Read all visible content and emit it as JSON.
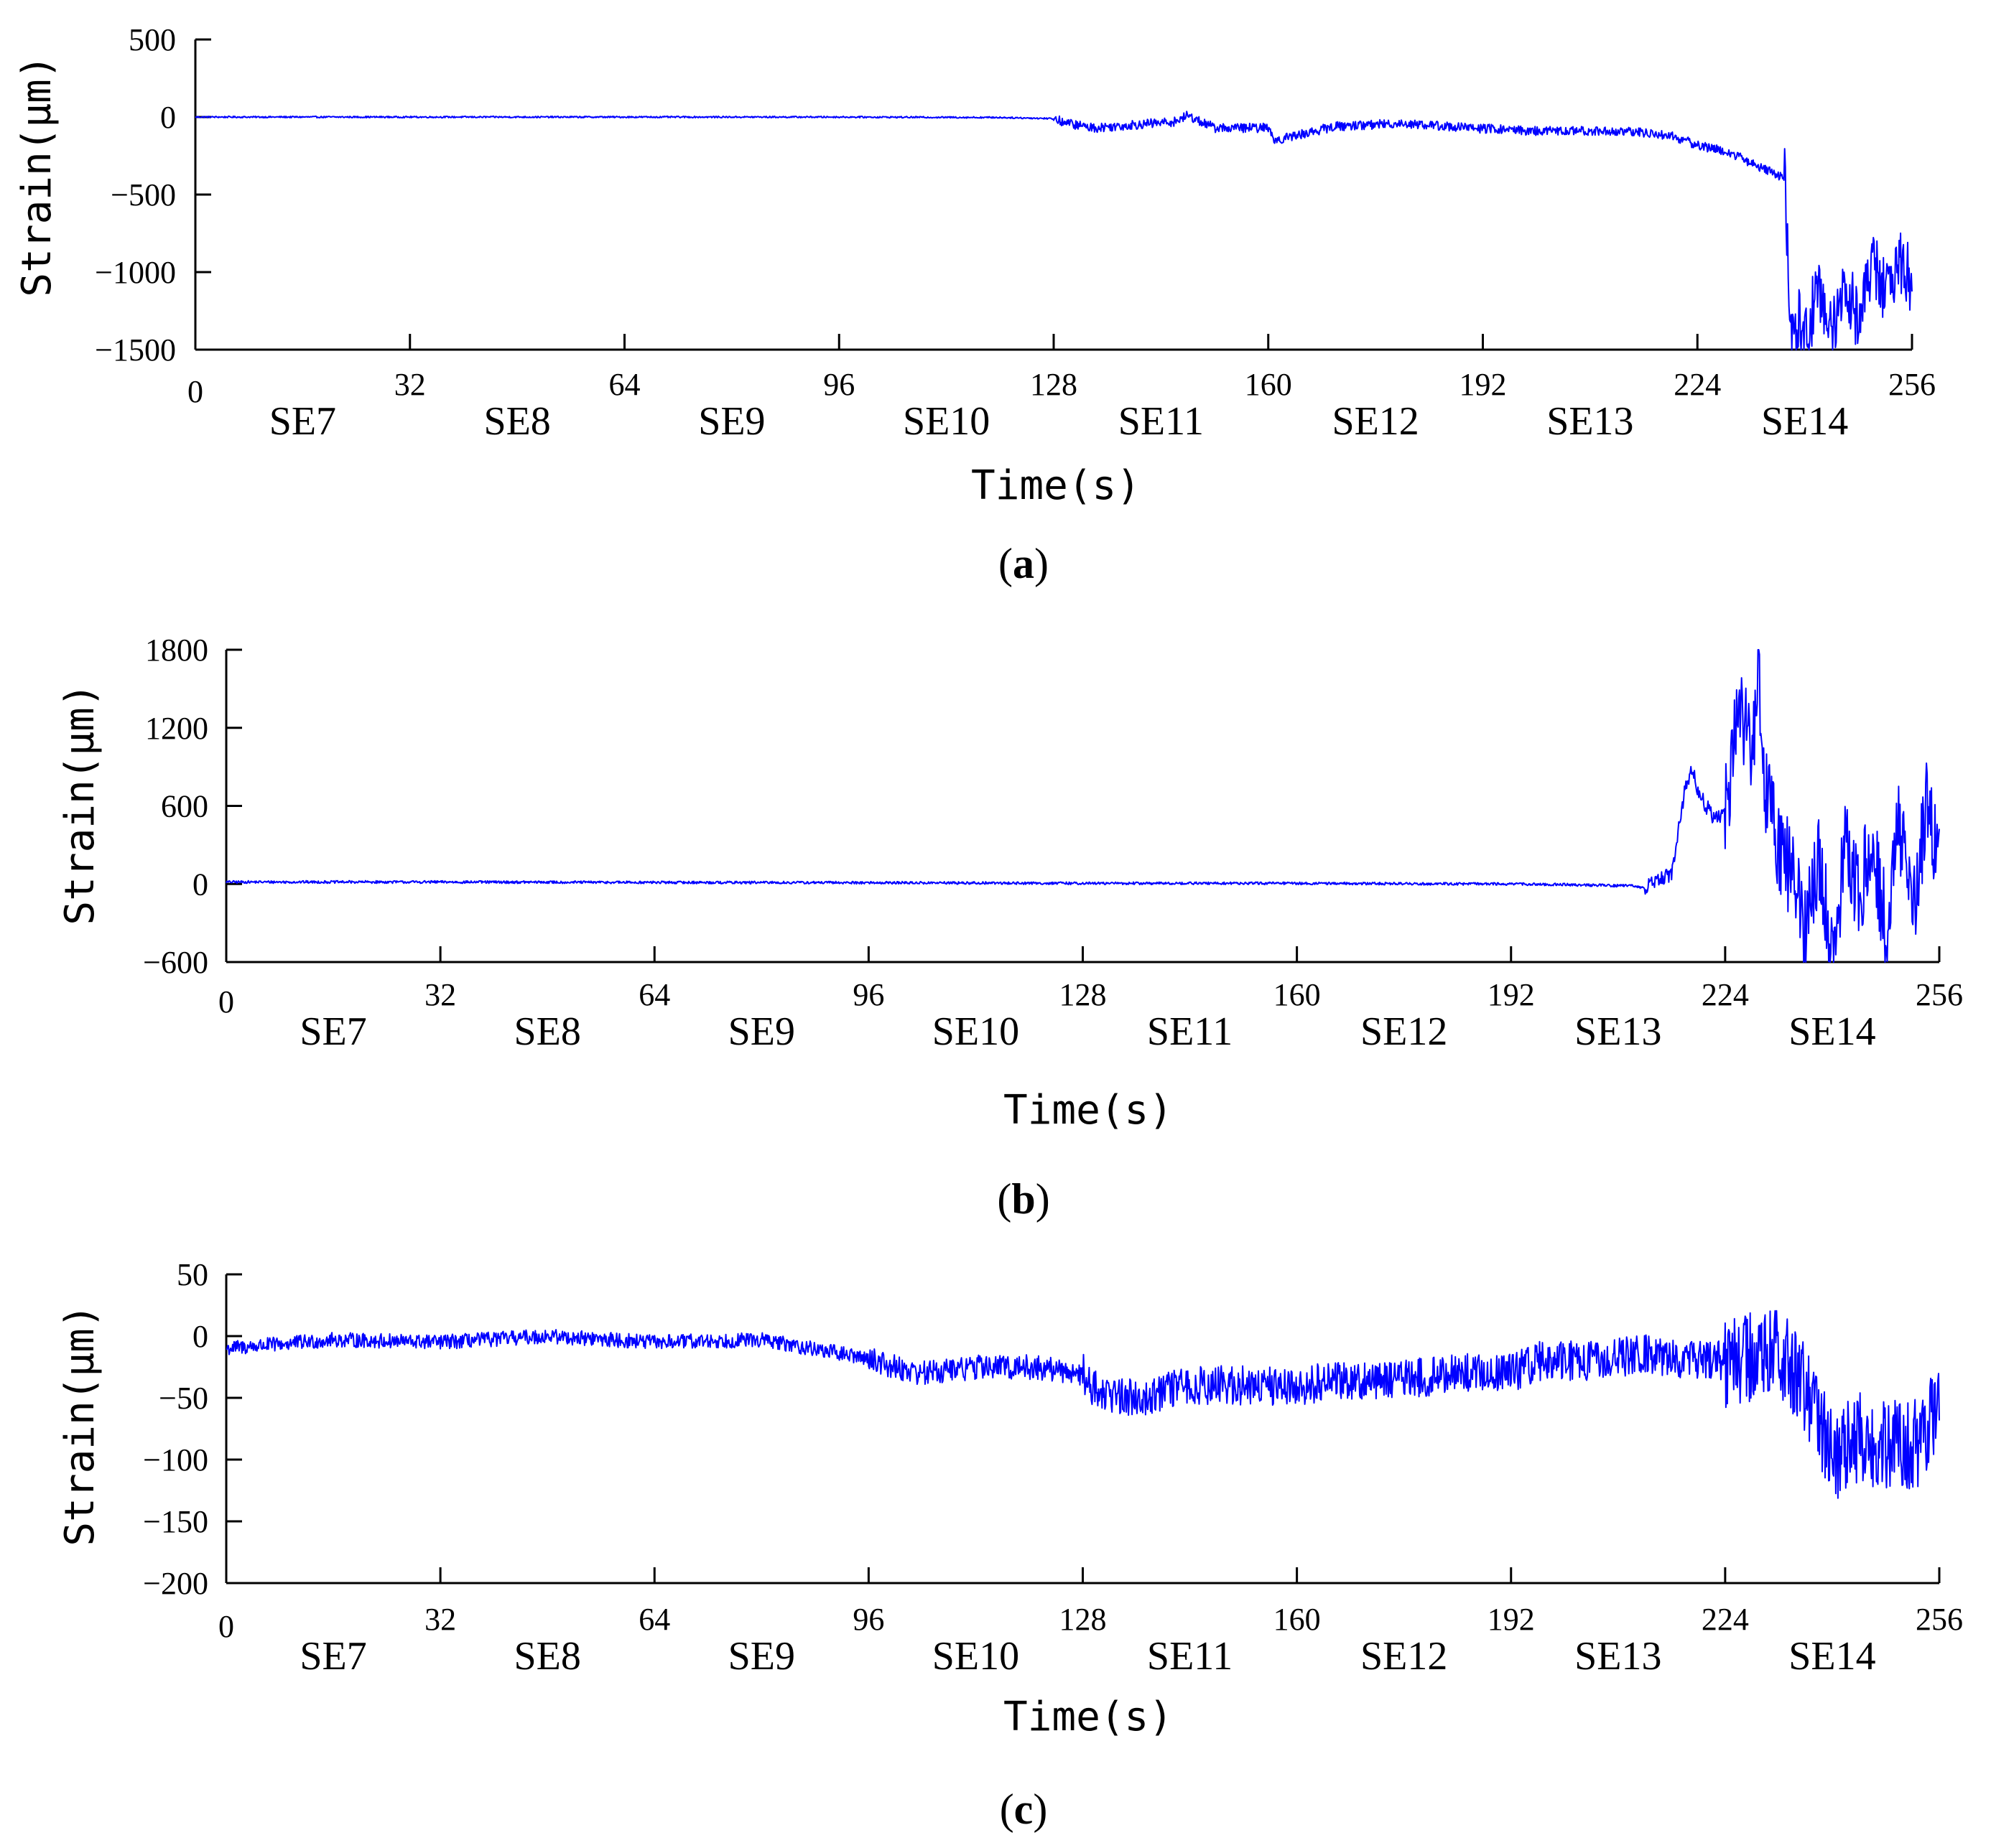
{
  "panels": [
    {
      "label": "a",
      "ylabel": "Strain(μm)",
      "xlabel": "Time(s)",
      "segments": [
        "SE7",
        "SE8",
        "SE9",
        "SE10",
        "SE11",
        "SE12",
        "SE13",
        "SE14"
      ],
      "xticks": [
        "0",
        "32",
        "64",
        "96",
        "128",
        "160",
        "192",
        "224",
        "256"
      ],
      "yticks": [
        "500",
        "0",
        "−500",
        "−1000",
        "−1500"
      ]
    },
    {
      "label": "b",
      "ylabel": "Strain(μm)",
      "xlabel": "Time(s)",
      "segments": [
        "SE7",
        "SE8",
        "SE9",
        "SE10",
        "SE11",
        "SE12",
        "SE13",
        "SE14"
      ],
      "xticks": [
        "0",
        "32",
        "64",
        "96",
        "128",
        "160",
        "192",
        "224",
        "256"
      ],
      "yticks": [
        "1800",
        "1200",
        "600",
        "0",
        "−600"
      ]
    },
    {
      "label": "c",
      "ylabel": "Strain(μm)",
      "xlabel": "Time(s)",
      "segments": [
        "SE7",
        "SE8",
        "SE9",
        "SE10",
        "SE11",
        "SE12",
        "SE13",
        "SE14"
      ],
      "xticks": [
        "0",
        "32",
        "64",
        "96",
        "128",
        "160",
        "192",
        "224",
        "256"
      ],
      "yticks": [
        "50",
        "0",
        "−50",
        "−100",
        "−150",
        "−200"
      ]
    }
  ],
  "chart_data": [
    {
      "type": "line",
      "panel": "a",
      "color": "#0000ff",
      "xlim": [
        0,
        256
      ],
      "ylim": [
        -1500,
        500
      ],
      "series": [
        {
          "x": [
            0,
            32,
            64,
            96,
            120,
            128,
            130,
            134,
            140,
            146,
            148,
            152,
            160,
            161,
            170,
            180,
            190,
            200,
            210,
            216,
            220,
            224,
            228,
            230,
            232,
            234,
            237,
            238,
            239,
            240,
            242,
            244,
            246,
            248,
            250,
            252,
            254,
            256
          ],
          "y": [
            0,
            0,
            0,
            0,
            -3,
            -10,
            -40,
            -70,
            -50,
            -30,
            10,
            -70,
            -70,
            -150,
            -60,
            -40,
            -70,
            -90,
            -90,
            -100,
            -120,
            -180,
            -220,
            -250,
            -300,
            -330,
            -400,
            -1500,
            -1300,
            -1450,
            -1100,
            -1400,
            -1050,
            -1300,
            -950,
            -1100,
            -950,
            -1050
          ]
        }
      ],
      "xticks": [
        0,
        32,
        64,
        96,
        128,
        160,
        192,
        224,
        256
      ],
      "yticks": [
        500,
        0,
        -500,
        -1000,
        -1500
      ],
      "xlabel": "Time(s)",
      "ylabel": "Strain(μm)"
    },
    {
      "type": "line",
      "panel": "b",
      "color": "#0000ff",
      "xlim": [
        0,
        256
      ],
      "ylim": [
        -600,
        1800
      ],
      "series": [
        {
          "x": [
            0,
            32,
            64,
            96,
            128,
            160,
            192,
            200,
            210,
            212,
            214,
            216,
            217,
            218,
            219,
            220,
            222,
            224,
            226,
            228,
            229,
            230,
            232,
            234,
            236,
            238,
            240,
            242,
            244,
            246,
            248,
            250,
            252,
            254,
            256
          ],
          "y": [
            15,
            15,
            12,
            10,
            5,
            5,
            0,
            -5,
            -15,
            -30,
            30,
            80,
            400,
            720,
            900,
            700,
            530,
            530,
            1400,
            1050,
            1700,
            700,
            300,
            50,
            -350,
            200,
            -500,
            250,
            -100,
            350,
            -300,
            400,
            -200,
            600,
            150
          ]
        }
      ],
      "xticks": [
        0,
        32,
        64,
        96,
        128,
        160,
        192,
        224,
        256
      ],
      "yticks": [
        1800,
        1200,
        600,
        0,
        -600
      ],
      "xlabel": "Time(s)",
      "ylabel": "Strain(μm)"
    },
    {
      "type": "line",
      "panel": "c",
      "color": "#0000ff",
      "xlim": [
        0,
        256
      ],
      "ylim": [
        -200,
        50
      ],
      "series": [
        {
          "x": [
            0,
            16,
            32,
            48,
            64,
            80,
            96,
            100,
            104,
            112,
            120,
            128,
            130,
            136,
            144,
            152,
            160,
            168,
            176,
            184,
            192,
            196,
            204,
            212,
            220,
            224,
            232,
            236,
            240,
            244,
            248,
            252,
            256
          ],
          "y": [
            -10,
            -3,
            -5,
            0,
            -5,
            -3,
            -18,
            -25,
            -30,
            -25,
            -25,
            -30,
            -45,
            -50,
            -40,
            -40,
            -40,
            -35,
            -35,
            -30,
            -30,
            -20,
            -20,
            -15,
            -20,
            -20,
            -15,
            -40,
            -100,
            -80,
            -90,
            -90,
            -60
          ]
        }
      ],
      "xticks": [
        0,
        32,
        64,
        96,
        128,
        160,
        192,
        224,
        256
      ],
      "yticks": [
        50,
        0,
        -50,
        -100,
        -150,
        -200
      ],
      "xlabel": "Time(s)",
      "ylabel": "Strain(μm)"
    }
  ]
}
